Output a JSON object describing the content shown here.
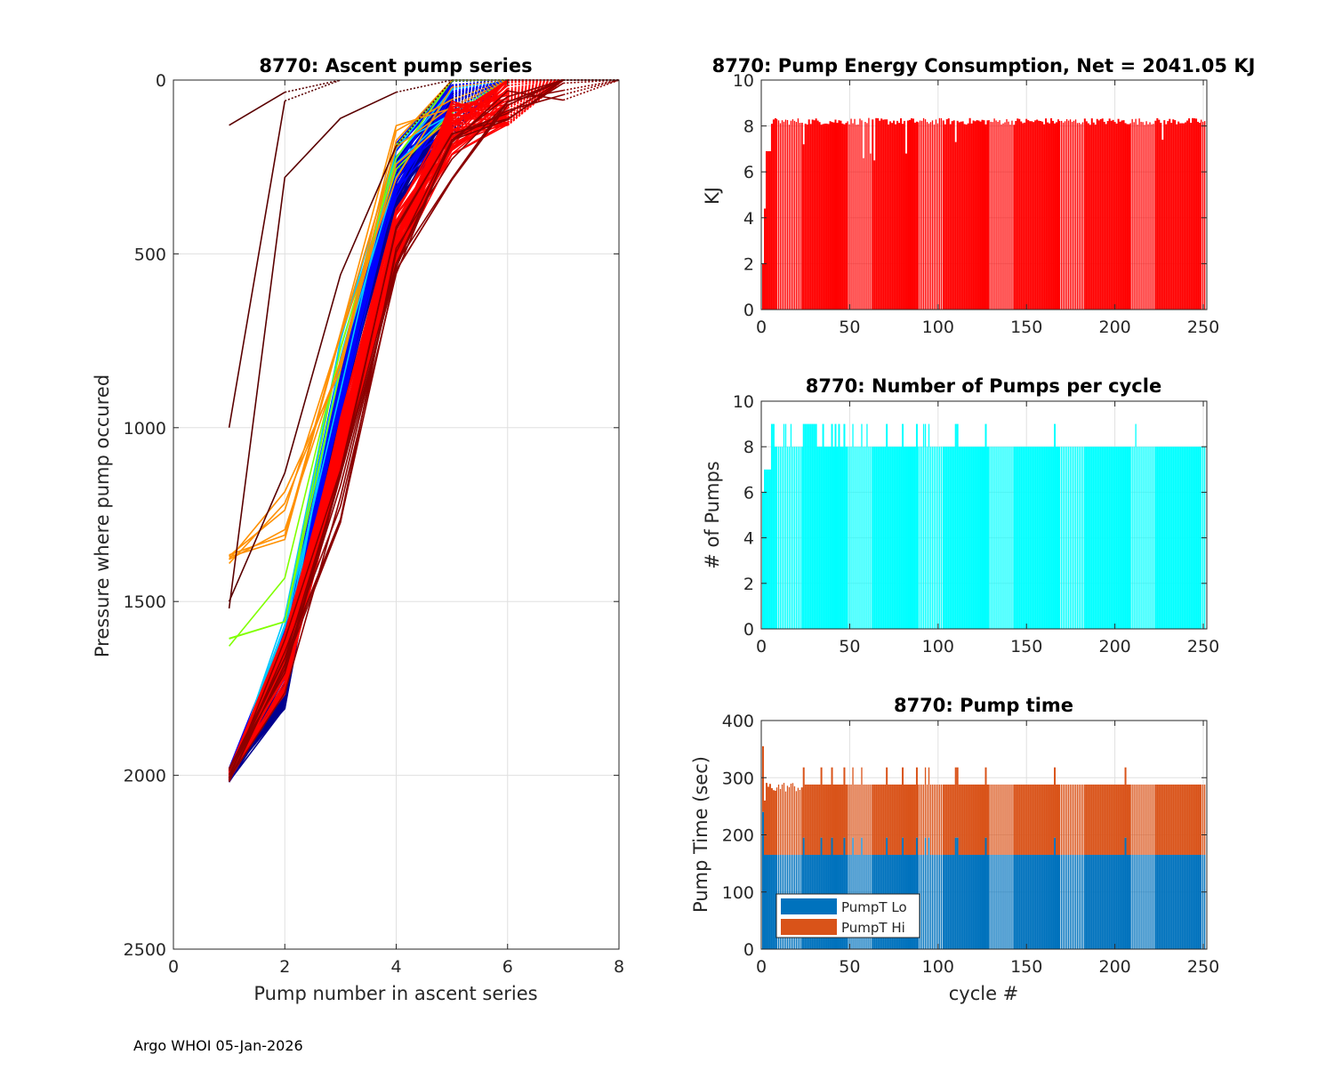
{
  "footer": "Argo WHOI 05-Jan-2026",
  "chart_data": [
    {
      "id": "ascent",
      "type": "line",
      "title": "8770: Ascent pump series",
      "xlabel": "Pump number in ascent series",
      "ylabel": "Pressure where pump occured",
      "xlim": [
        0,
        8
      ],
      "ylim": [
        0,
        2500
      ],
      "y_reversed": true,
      "xticks": [
        0,
        2,
        4,
        6,
        8
      ],
      "yticks": [
        0,
        500,
        1000,
        1500,
        2000,
        2500
      ],
      "grid": true,
      "note": "One polyline per cycle, colored by cycle (jet colormap: dark blue early -> dark red late); final segment to surface drawn dotted",
      "series_groups": [
        {
          "name": "typical-early",
          "color": "#00008f",
          "count": 60,
          "points": [
            [
              1,
              2000
            ],
            [
              2,
              1720
            ],
            [
              3,
              900
            ],
            [
              4,
              300
            ],
            [
              5,
              80
            ],
            [
              6,
              0
            ]
          ]
        },
        {
          "name": "typical-blue",
          "color": "#0000ff",
          "count": 20,
          "points": [
            [
              1,
              2000
            ],
            [
              2,
              1650
            ],
            [
              3,
              880
            ],
            [
              4,
              260
            ],
            [
              5,
              60
            ],
            [
              6,
              0
            ]
          ]
        },
        {
          "name": "typical-cyan",
          "color": "#00c8ff",
          "count": 6,
          "points": [
            [
              1,
              2000
            ],
            [
              2,
              1600
            ],
            [
              3,
              820
            ],
            [
              4,
              230
            ],
            [
              5,
              30
            ],
            [
              6,
              0
            ]
          ]
        },
        {
          "name": "typical-green",
          "color": "#80ff00",
          "count": 3,
          "points": [
            [
              1,
              1610
            ],
            [
              2,
              1500
            ],
            [
              3,
              760
            ],
            [
              4,
              190
            ],
            [
              5,
              20
            ],
            [
              6,
              0
            ]
          ]
        },
        {
          "name": "typical-orange",
          "color": "#ff9000",
          "count": 6,
          "points": [
            [
              1,
              1380
            ],
            [
              2,
              1250
            ],
            [
              3,
              780
            ],
            [
              4,
              210
            ],
            [
              5,
              40
            ],
            [
              6,
              0
            ]
          ]
        },
        {
          "name": "late-red",
          "color": "#ff0000",
          "count": 50,
          "points": [
            [
              1,
              2000
            ],
            [
              2,
              1680
            ],
            [
              3,
              1050
            ],
            [
              4,
              450
            ],
            [
              5,
              140
            ],
            [
              6,
              60
            ],
            [
              7,
              0
            ]
          ]
        },
        {
          "name": "late-darkred",
          "color": "#8b0000",
          "count": 10,
          "points": [
            [
              1,
              2000
            ],
            [
              2,
              1700
            ],
            [
              3,
              1200
            ],
            [
              4,
              500
            ],
            [
              5,
              220
            ],
            [
              6,
              100
            ],
            [
              7,
              20
            ],
            [
              8,
              0
            ]
          ]
        },
        {
          "name": "outlier-1",
          "color": "#5a0000",
          "count": 1,
          "points": [
            [
              1,
              130
            ],
            [
              2,
              35
            ],
            [
              3,
              0
            ]
          ]
        },
        {
          "name": "outlier-2",
          "color": "#5a0000",
          "count": 1,
          "points": [
            [
              1,
              1000
            ],
            [
              2,
              60
            ],
            [
              3,
              0
            ]
          ]
        },
        {
          "name": "outlier-3",
          "color": "#5a0000",
          "count": 1,
          "points": [
            [
              1,
              1520
            ],
            [
              2,
              280
            ],
            [
              3,
              110
            ],
            [
              4,
              35
            ],
            [
              5,
              0
            ]
          ]
        },
        {
          "name": "outlier-4",
          "color": "#5a0000",
          "count": 1,
          "points": [
            [
              1,
              1500
            ],
            [
              2,
              1130
            ],
            [
              3,
              560
            ],
            [
              4,
              190
            ],
            [
              5,
              0
            ]
          ]
        }
      ]
    },
    {
      "id": "energy",
      "type": "bar",
      "title": "8770: Pump Energy Consumption,  Net = 2041.05 KJ",
      "xlabel": "",
      "ylabel": "KJ",
      "xlim": [
        0,
        252
      ],
      "ylim": [
        0,
        10
      ],
      "xticks": [
        0,
        50,
        100,
        150,
        200,
        250
      ],
      "yticks": [
        0,
        2,
        4,
        6,
        8,
        10
      ],
      "grid": true,
      "color": "#ff0000",
      "net_total": "2041.05 KJ",
      "cycles": "1-251",
      "values_summary": {
        "cycle_1": 2.0,
        "cycle_2": 4.4,
        "cycles_3_5": 6.9,
        "typical": 8.2,
        "min_later": 6.5,
        "max": 8.6
      },
      "dips": {
        "24": 7.2,
        "58": 6.6,
        "62": 6.8,
        "64": 6.5,
        "82": 6.8,
        "110": 7.3,
        "227": 7.4
      }
    },
    {
      "id": "pumps",
      "type": "bar",
      "title": "8770: Number of Pumps per cycle",
      "xlabel": "",
      "ylabel": "# of Pumps",
      "xlim": [
        0,
        252
      ],
      "ylim": [
        0,
        10
      ],
      "xticks": [
        0,
        50,
        100,
        150,
        200,
        250
      ],
      "yticks": [
        0,
        2,
        4,
        6,
        8,
        10
      ],
      "grid": true,
      "color": "#00ffff",
      "values_summary": {
        "cycle_1": 6,
        "cycles_2_5": 7,
        "typical": 8
      },
      "nine_pump_cycles": [
        6,
        7,
        13,
        14,
        17,
        24,
        25,
        26,
        27,
        28,
        29,
        30,
        31,
        35,
        40,
        42,
        44,
        47,
        52,
        57,
        60,
        71,
        80,
        88,
        92,
        93,
        95,
        110,
        111,
        127,
        166,
        212
      ]
    },
    {
      "id": "pumptime",
      "type": "bar",
      "stacked": true,
      "title": "8770: Pump time",
      "xlabel": "cycle #",
      "ylabel": "Pump Time (sec)",
      "xlim": [
        0,
        252
      ],
      "ylim": [
        0,
        400
      ],
      "xticks": [
        0,
        50,
        100,
        150,
        200,
        250
      ],
      "yticks": [
        0,
        100,
        200,
        300,
        400
      ],
      "grid": true,
      "legend": {
        "position": "bottom-left",
        "entries": [
          "PumpT Lo",
          "PumpT Hi"
        ]
      },
      "series": [
        {
          "name": "PumpT Lo",
          "color": "#0072bd",
          "typical": 165,
          "first_cycle": 240,
          "spikes_value": 195
        },
        {
          "name": "PumpT Hi",
          "color": "#d95319",
          "typical_total": 288,
          "first_cycle_total": 355,
          "second_cycle_total": 260,
          "spikes_total": 318
        }
      ]
    }
  ]
}
